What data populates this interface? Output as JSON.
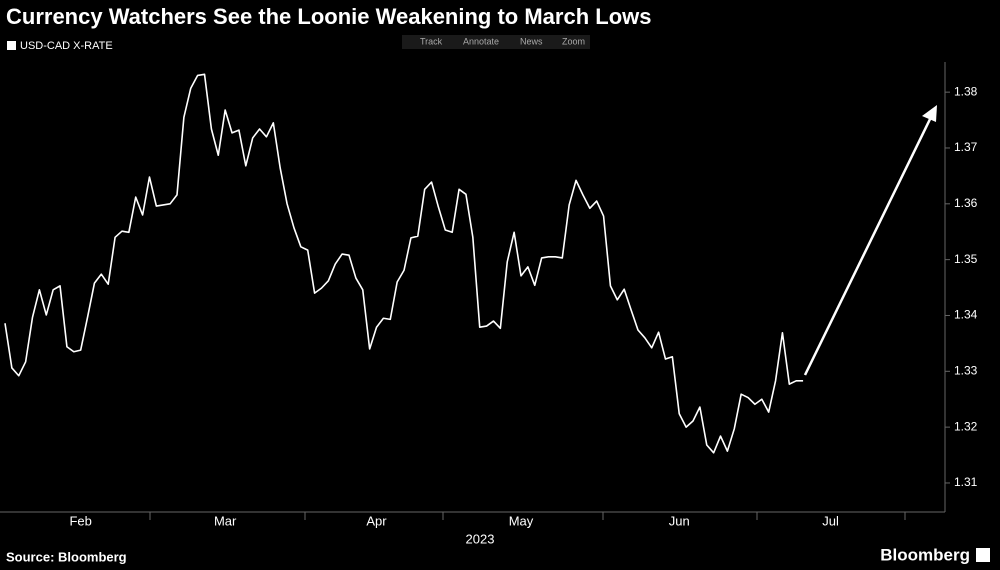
{
  "chart_data": {
    "type": "line",
    "title": "Currency Watchers See the Loonie Weakening to March Lows",
    "toolbar": [
      "Track",
      "Annotate",
      "News",
      "Zoom"
    ],
    "x_label": "2023",
    "source": "Source: Bloomberg",
    "logo": "Bloomberg",
    "categories": [
      null,
      null,
      null,
      null,
      null,
      null,
      null,
      null,
      null,
      null,
      null,
      "Feb",
      null,
      null,
      null,
      null,
      null,
      null,
      null,
      null,
      null,
      null,
      null,
      null,
      null,
      null,
      null,
      null,
      null,
      null,
      null,
      null,
      "Mar",
      null,
      null,
      null,
      null,
      null,
      null,
      null,
      null,
      null,
      null,
      null,
      null,
      null,
      null,
      null,
      null,
      null,
      null,
      null,
      null,
      null,
      "Apr",
      null,
      null,
      null,
      null,
      null,
      null,
      null,
      null,
      null,
      null,
      null,
      null,
      null,
      null,
      null,
      null,
      null,
      null,
      null,
      null,
      "May",
      null,
      null,
      null,
      null,
      null,
      null,
      null,
      null,
      null,
      null,
      null,
      null,
      null,
      null,
      null,
      null,
      null,
      null,
      null,
      null,
      null,
      null,
      "Jun",
      null,
      null,
      null,
      null,
      null,
      null,
      null,
      null,
      null,
      null,
      null,
      null,
      null,
      null,
      null,
      null,
      null,
      null,
      null,
      null,
      null,
      "Jul",
      null,
      null,
      null,
      null,
      null,
      null,
      null,
      null,
      null,
      null,
      null,
      null,
      null,
      null,
      null,
      null
    ],
    "series": [
      {
        "name": "USD-CAD X-RATE",
        "color": "#ffffff",
        "values": [
          1.3386,
          1.3306,
          1.3292,
          1.3317,
          1.3397,
          1.3446,
          1.3401,
          1.3446,
          1.3453,
          1.3344,
          1.3335,
          1.3338,
          1.3397,
          1.3458,
          1.3474,
          1.3456,
          1.354,
          1.3551,
          1.3549,
          1.3612,
          1.358,
          1.3648,
          1.3596,
          1.3598,
          1.36,
          1.3616,
          1.3755,
          1.3807,
          1.383,
          1.3832,
          1.3734,
          1.3687,
          1.3768,
          1.3727,
          1.3732,
          1.3668,
          1.3718,
          1.3734,
          1.372,
          1.3745,
          1.3664,
          1.36,
          1.3557,
          1.3523,
          1.3517,
          1.344,
          1.3449,
          1.3462,
          1.3492,
          1.351,
          1.3508,
          1.3467,
          1.3446,
          1.334,
          1.3379,
          1.3395,
          1.3393,
          1.346,
          1.3481,
          1.3539,
          1.3542,
          1.3626,
          1.3639,
          1.3594,
          1.3553,
          1.3549,
          1.3626,
          1.3617,
          1.354,
          1.3379,
          1.3381,
          1.339,
          1.3377,
          1.3496,
          1.3549,
          1.3471,
          1.3487,
          1.3454,
          1.3503,
          1.3505,
          1.3505,
          1.3503,
          1.3598,
          1.3642,
          1.3616,
          1.3592,
          1.3605,
          1.3578,
          1.3453,
          1.3428,
          1.3447,
          1.341,
          1.3374,
          1.336,
          1.3342,
          1.337,
          1.3322,
          1.3326,
          1.3224,
          1.32,
          1.3211,
          1.3236,
          1.3168,
          1.3154,
          1.3184,
          1.3157,
          1.3197,
          1.3259,
          1.3253,
          1.3241,
          1.325,
          1.3227,
          1.3283,
          1.3369,
          1.3277,
          1.3283,
          1.3283,
          null,
          null,
          null,
          null,
          null,
          null,
          null,
          null,
          null,
          null,
          null,
          null,
          null,
          null,
          null,
          null,
          null,
          null,
          null,
          null
        ]
      }
    ],
    "ylim": [
      1.3048,
      1.3854
    ],
    "yticks": [
      1.31,
      1.32,
      1.33,
      1.34,
      1.35,
      1.36,
      1.37,
      1.38
    ],
    "grid": false
  }
}
